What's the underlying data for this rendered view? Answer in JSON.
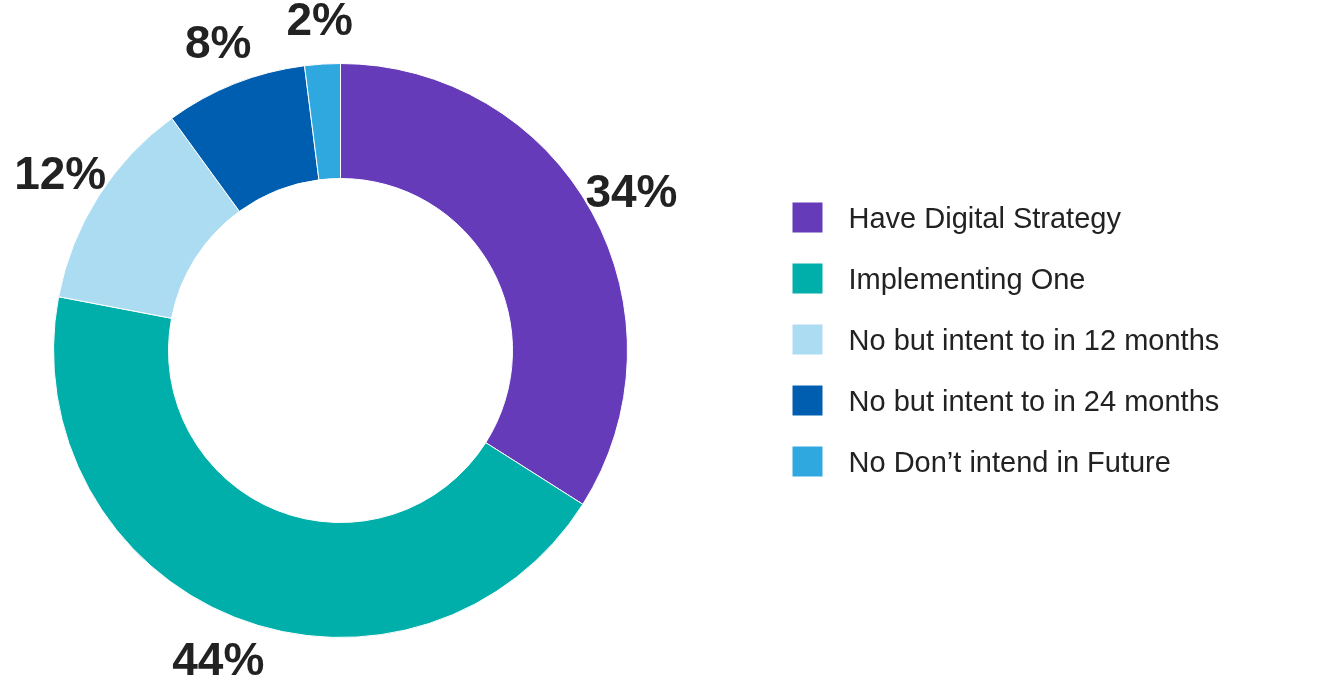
{
  "chart_data": {
    "type": "donut",
    "categories": [
      "Have Digital Strategy",
      "Implementing One",
      "No but intent to in 12 months",
      "No but intent to in 24 months",
      "No Don’t intend in Future"
    ],
    "values": [
      34,
      44,
      12,
      8,
      2
    ],
    "colors": [
      "#653bba",
      "#00afaa",
      "#acdcf2",
      "#005eb0",
      "#2ea8df"
    ],
    "value_labels": [
      "34%",
      "44%",
      "12%",
      "8%",
      "2%"
    ],
    "legend": "right"
  }
}
